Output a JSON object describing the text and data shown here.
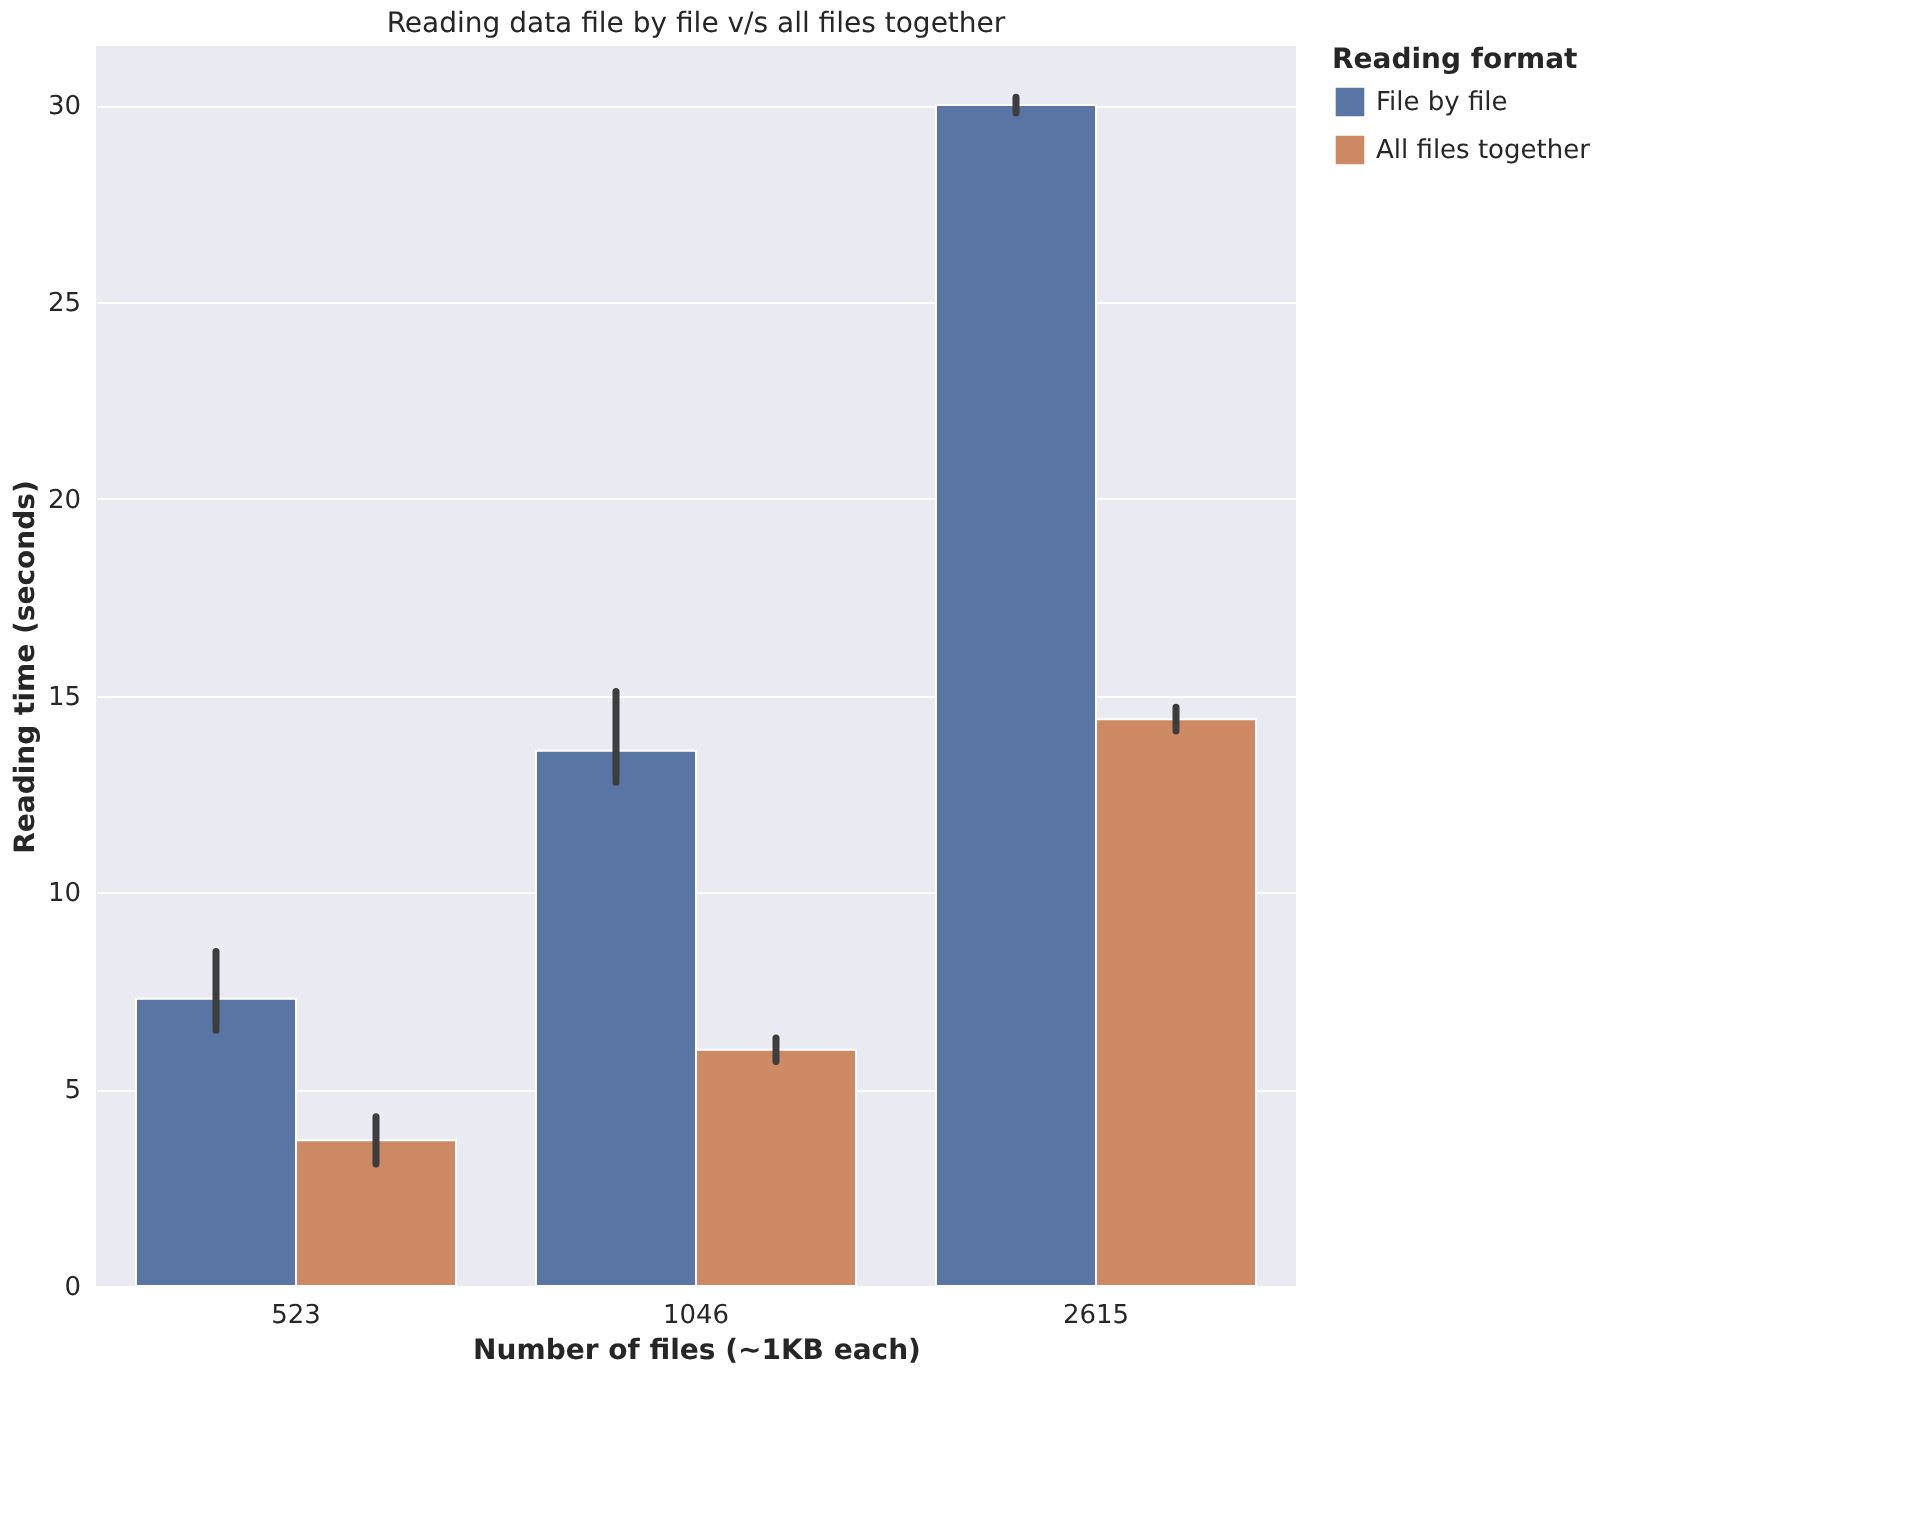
{
  "chart_data": {
    "type": "bar",
    "title": "Reading data file by file v/s all files together",
    "xlabel": "Number of files (~1KB each)",
    "ylabel": "Reading time (seconds)",
    "legend_title": "Reading format",
    "categories": [
      "523",
      "1046",
      "2615"
    ],
    "series": [
      {
        "name": "File by file",
        "color": "#5975a4",
        "values": [
          7.3,
          13.6,
          30.0
        ],
        "errors": [
          [
            6.5,
            8.5
          ],
          [
            12.8,
            15.1
          ],
          [
            29.8,
            30.2
          ]
        ]
      },
      {
        "name": "All files together",
        "color": "#cc8963",
        "values": [
          3.7,
          6.0,
          14.4
        ],
        "errors": [
          [
            3.1,
            4.3
          ],
          [
            5.7,
            6.3
          ],
          [
            14.1,
            14.7
          ]
        ]
      }
    ],
    "ylim": [
      0,
      31.5
    ],
    "yticks": [
      0,
      5,
      10,
      15,
      20,
      25,
      30
    ],
    "grid": "y",
    "legend": "right"
  }
}
